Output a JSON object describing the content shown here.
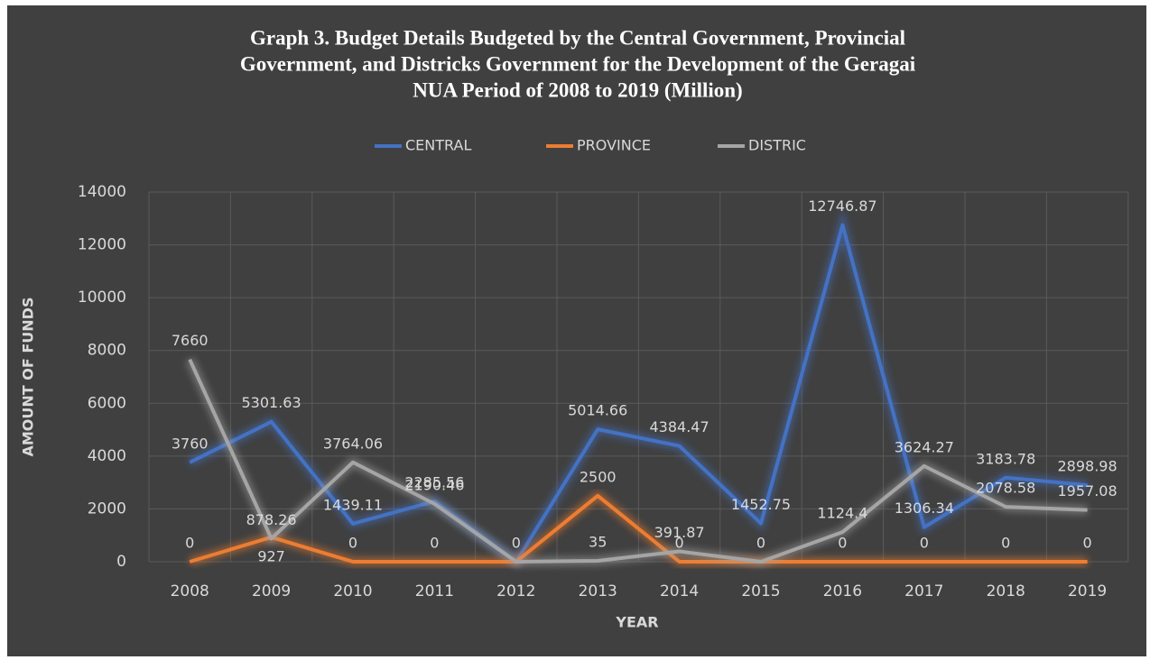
{
  "chart_data": {
    "type": "line",
    "title": "Graph 3. Budget Details Budgeted by the Central Government,  Provincial Government, and Districks Government for the Development of the Geragai NUA Period of 2008 to 2019 (Million)",
    "title_lines": [
      "Graph 3. Budget Details Budgeted by the Central Government,  Provincial",
      "Government, and Districks Government for the Development of the Geragai",
      "NUA Period of 2008 to 2019 (Million)"
    ],
    "x_label": "YEAR",
    "y_label": "AMOUNT OF FUNDS",
    "categories": [
      "2008",
      "2009",
      "2010",
      "2011",
      "2012",
      "2013",
      "2014",
      "2015",
      "2016",
      "2017",
      "2018",
      "2019"
    ],
    "series": [
      {
        "name": "CENTRAL",
        "color": "#4472c4",
        "values": [
          3760,
          5301.63,
          1439.11,
          2285.56,
          0,
          5014.66,
          4384.47,
          1452.75,
          12746.87,
          1306.34,
          3183.78,
          2898.98
        ],
        "value_labels": [
          "3760",
          "5301.63",
          "1439.11",
          "2285.56",
          "0",
          "5014.66",
          "4384.47",
          "1452.75",
          "12746.87",
          "1306.34",
          "3183.78",
          "2898.98"
        ]
      },
      {
        "name": "PROVINCE",
        "color": "#ed7d31",
        "values": [
          0,
          927,
          0,
          0,
          0,
          2500,
          0,
          0,
          0,
          0,
          0,
          0
        ],
        "value_labels": [
          "0",
          "927",
          "0",
          "0",
          null,
          "2500",
          "0",
          "0",
          "0",
          "0",
          "0",
          "0"
        ]
      },
      {
        "name": "DISTRIC",
        "color": "#a5a5a5",
        "values": [
          7660,
          878.26,
          3764.06,
          2190.46,
          0,
          35,
          391.87,
          0,
          1124.4,
          3624.27,
          2078.58,
          1957.08
        ],
        "value_labels": [
          "7660",
          "878.26",
          "3764.06",
          "2190.46",
          null,
          "35",
          "391.87",
          null,
          "1124.4",
          "3624.27",
          "2078.58",
          "1957.08"
        ]
      }
    ],
    "ylim": [
      0,
      14000
    ],
    "yticks": [
      0,
      2000,
      4000,
      6000,
      8000,
      10000,
      12000,
      14000
    ],
    "grid": true,
    "legend": "top"
  }
}
